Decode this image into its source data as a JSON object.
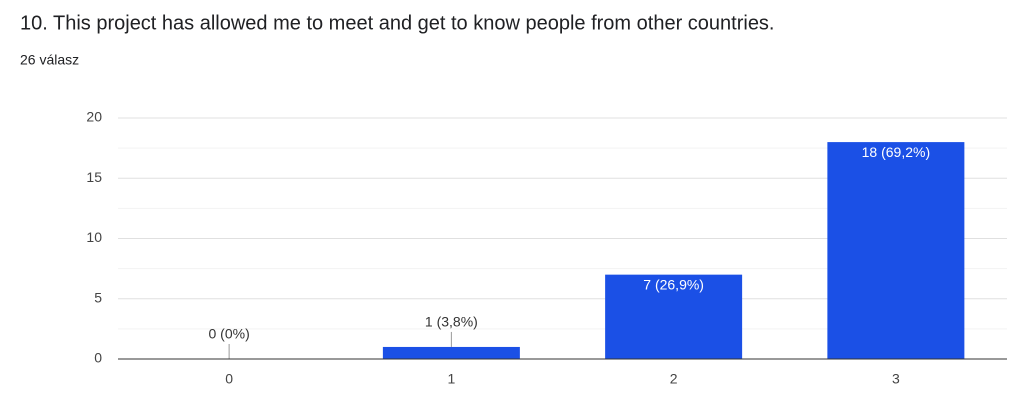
{
  "chart_data": {
    "type": "bar",
    "title": "10. This project has allowed me to meet and get to know people from other countries.",
    "subtitle": "26 válasz",
    "categories": [
      "0",
      "1",
      "2",
      "3"
    ],
    "values": [
      0,
      1,
      7,
      18
    ],
    "value_labels": [
      "0 (0%)",
      "1 (3,8%)",
      "7 (26,9%)",
      "18 (69,2%)"
    ],
    "color": "#1b50e6",
    "ylim": [
      0,
      20
    ],
    "yticks": [
      0,
      5,
      10,
      15,
      20
    ],
    "minor_yticks": [
      2.5,
      7.5,
      12.5,
      17.5
    ],
    "grid": true
  }
}
